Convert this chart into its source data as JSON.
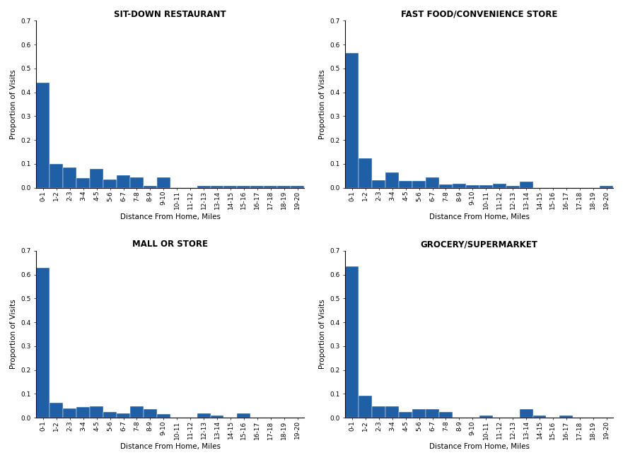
{
  "categories": [
    "0-1",
    "1-2",
    "2-3",
    "3-4",
    "4-5",
    "5-6",
    "6-7",
    "7-8",
    "8-9",
    "9-10",
    "10-11",
    "11-12",
    "12-13",
    "13-14",
    "14-15",
    "15-16",
    "16-17",
    "17-18",
    "18-19",
    "19-20"
  ],
  "sit_down": [
    0.44,
    0.1,
    0.085,
    0.04,
    0.08,
    0.035,
    0.053,
    0.043,
    0.008,
    0.043,
    0.0,
    0.0,
    0.008,
    0.008,
    0.008,
    0.008,
    0.008,
    0.008,
    0.008,
    0.008
  ],
  "fast_food": [
    0.565,
    0.122,
    0.033,
    0.065,
    0.03,
    0.03,
    0.043,
    0.015,
    0.018,
    0.01,
    0.01,
    0.018,
    0.008,
    0.025,
    0.0,
    0.0,
    0.0,
    0.0,
    0.0,
    0.008
  ],
  "mall": [
    0.63,
    0.063,
    0.038,
    0.046,
    0.048,
    0.025,
    0.018,
    0.048,
    0.035,
    0.015,
    0.0,
    0.0,
    0.018,
    0.008,
    0.0,
    0.018,
    0.0,
    0.0,
    0.0,
    0.0
  ],
  "grocery": [
    0.635,
    0.093,
    0.048,
    0.048,
    0.025,
    0.035,
    0.035,
    0.025,
    0.0,
    0.0,
    0.008,
    0.0,
    0.0,
    0.035,
    0.008,
    0.0,
    0.008,
    0.0,
    0.0,
    0.0
  ],
  "titles": [
    "SIT-DOWN RESTAURANT",
    "FAST FOOD/CONVENIENCE STORE",
    "MALL OR STORE",
    "GROCERY/SUPERMARKET"
  ],
  "ylabel": "Proportion of Visits",
  "xlabel": "Distance From Home, Miles",
  "bar_color": "#1f5fa6",
  "ylim": [
    0,
    0.7
  ],
  "yticks": [
    0.0,
    0.1,
    0.2,
    0.3,
    0.4,
    0.5,
    0.6,
    0.7
  ],
  "title_fontsize": 8.5,
  "label_fontsize": 7.5,
  "tick_fontsize": 6.5,
  "bg_color": "#ffffff"
}
